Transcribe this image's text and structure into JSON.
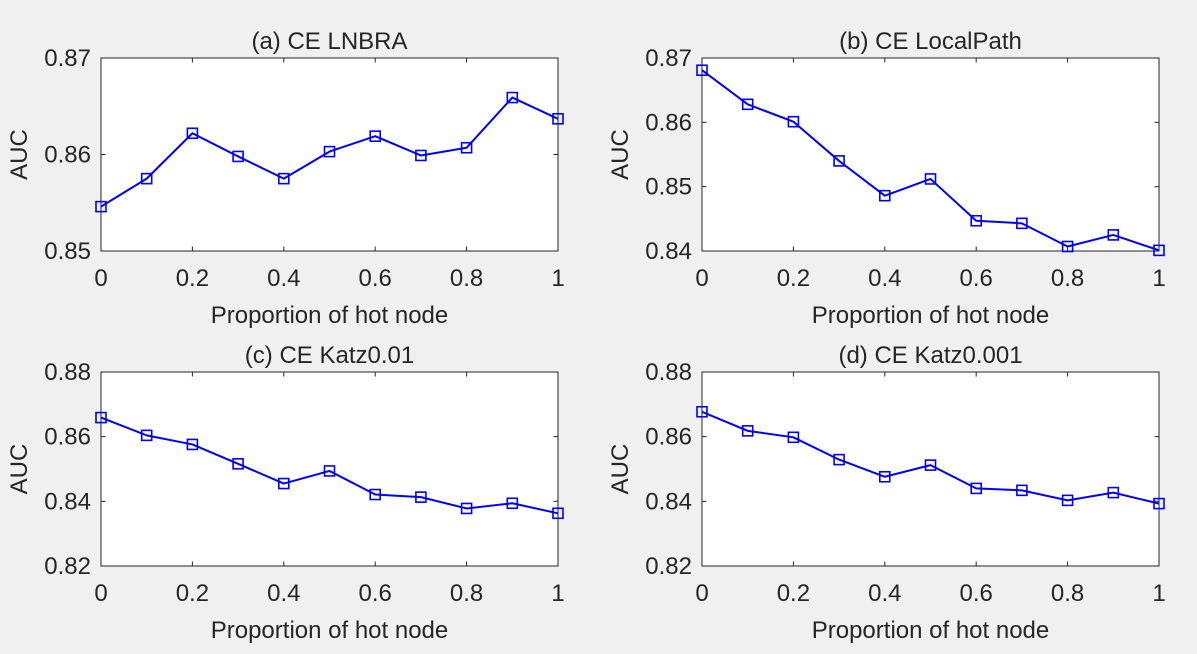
{
  "chart_data": [
    {
      "type": "line",
      "title": "(a) CE LNBRA",
      "xlabel": "Proportion of hot node",
      "ylabel": "AUC",
      "xlim": [
        0,
        1
      ],
      "ylim": [
        0.85,
        0.87
      ],
      "xticks": [
        0,
        0.2,
        0.4,
        0.6,
        0.8,
        1
      ],
      "xtick_labels": [
        "0",
        "0.2",
        "0.4",
        "0.6",
        "0.8",
        "1"
      ],
      "yticks": [
        0.85,
        0.86,
        0.87
      ],
      "ytick_labels": [
        "0.85",
        "0.86",
        "0.87"
      ],
      "x": [
        0,
        0.1,
        0.2,
        0.3,
        0.4,
        0.5,
        0.6,
        0.7,
        0.8,
        0.9,
        1.0
      ],
      "series": [
        {
          "values": [
            0.8546,
            0.8575,
            0.8622,
            0.8598,
            0.8575,
            0.8603,
            0.8619,
            0.8599,
            0.8607,
            0.8659,
            0.8637
          ],
          "color": "#0000ff",
          "marker": "square"
        }
      ],
      "grid": false
    },
    {
      "type": "line",
      "title": "(b) CE LocalPath",
      "xlabel": "Proportion of hot node",
      "ylabel": "AUC",
      "xlim": [
        0,
        1
      ],
      "ylim": [
        0.84,
        0.87
      ],
      "xticks": [
        0,
        0.2,
        0.4,
        0.6,
        0.8,
        1
      ],
      "xtick_labels": [
        "0",
        "0.2",
        "0.4",
        "0.6",
        "0.8",
        "1"
      ],
      "yticks": [
        0.84,
        0.85,
        0.86,
        0.87
      ],
      "ytick_labels": [
        "0.84",
        "0.85",
        "0.86",
        "0.87"
      ],
      "x": [
        0,
        0.1,
        0.2,
        0.3,
        0.4,
        0.5,
        0.6,
        0.7,
        0.8,
        0.9,
        1.0
      ],
      "series": [
        {
          "values": [
            0.8681,
            0.8628,
            0.8601,
            0.854,
            0.8486,
            0.8512,
            0.8447,
            0.8443,
            0.8407,
            0.8425,
            0.8401
          ],
          "color": "#0000ff",
          "marker": "square"
        }
      ],
      "grid": false
    },
    {
      "type": "line",
      "title": "(c) CE Katz0.01",
      "xlabel": "Proportion of hot node",
      "ylabel": "AUC",
      "xlim": [
        0,
        1
      ],
      "ylim": [
        0.82,
        0.88
      ],
      "xticks": [
        0,
        0.2,
        0.4,
        0.6,
        0.8,
        1
      ],
      "xtick_labels": [
        "0",
        "0.2",
        "0.4",
        "0.6",
        "0.8",
        "1"
      ],
      "yticks": [
        0.82,
        0.84,
        0.86,
        0.88
      ],
      "ytick_labels": [
        "0.82",
        "0.84",
        "0.86",
        "0.88"
      ],
      "x": [
        0,
        0.1,
        0.2,
        0.3,
        0.4,
        0.5,
        0.6,
        0.7,
        0.8,
        0.9,
        1.0
      ],
      "series": [
        {
          "values": [
            0.8659,
            0.8604,
            0.8576,
            0.8516,
            0.8455,
            0.8494,
            0.8421,
            0.8413,
            0.8378,
            0.8394,
            0.8363
          ],
          "color": "#0000ff",
          "marker": "square"
        }
      ],
      "grid": false
    },
    {
      "type": "line",
      "title": "(d) CE Katz0.001",
      "xlabel": "Proportion of hot node",
      "ylabel": "AUC",
      "xlim": [
        0,
        1
      ],
      "ylim": [
        0.82,
        0.88
      ],
      "xticks": [
        0,
        0.2,
        0.4,
        0.6,
        0.8,
        1
      ],
      "xtick_labels": [
        "0",
        "0.2",
        "0.4",
        "0.6",
        "0.8",
        "1"
      ],
      "yticks": [
        0.82,
        0.84,
        0.86,
        0.88
      ],
      "ytick_labels": [
        "0.82",
        "0.84",
        "0.86",
        "0.88"
      ],
      "x": [
        0,
        0.1,
        0.2,
        0.3,
        0.4,
        0.5,
        0.6,
        0.7,
        0.8,
        0.9,
        1.0
      ],
      "series": [
        {
          "values": [
            0.8677,
            0.8618,
            0.8598,
            0.8529,
            0.8476,
            0.8512,
            0.844,
            0.8434,
            0.8403,
            0.8427,
            0.8393
          ],
          "color": "#0000ff",
          "marker": "square"
        }
      ],
      "grid": false
    }
  ]
}
